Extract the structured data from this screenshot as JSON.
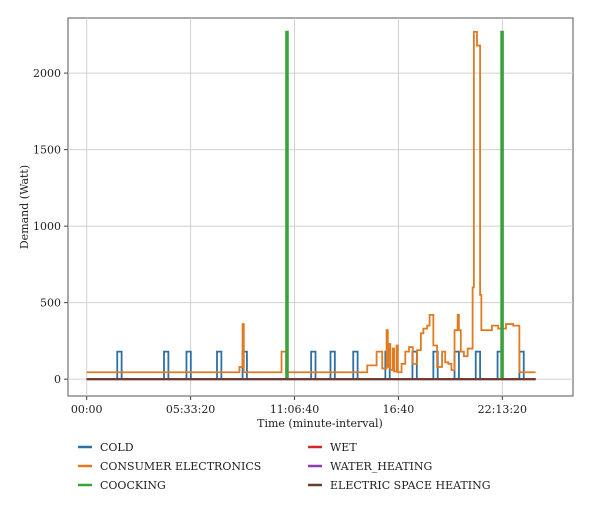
{
  "chart_data": {
    "type": "line",
    "xlabel": "Time (minute-interval)",
    "ylabel": "Demand (Watt)",
    "x_unit": "minutes since 00:00",
    "xlim": [
      -60,
      1560
    ],
    "ylim": [
      -110,
      2360
    ],
    "x_ticks": [
      {
        "value": 0,
        "label": "00:00"
      },
      {
        "value": 333.33,
        "label": "05:33:20"
      },
      {
        "value": 666.67,
        "label": "11:06:40"
      },
      {
        "value": 1000,
        "label": "16:40"
      },
      {
        "value": 1333.33,
        "label": "22:13:20"
      }
    ],
    "y_ticks": [
      0,
      500,
      1000,
      1500,
      2000
    ],
    "grid": true,
    "legend_position": "bottom",
    "series": [
      {
        "name": "COLD",
        "color": "#2d6fa7",
        "points": [
          [
            0,
            0
          ],
          [
            98,
            0
          ],
          [
            98,
            180
          ],
          [
            112,
            180
          ],
          [
            112,
            0
          ],
          [
            248,
            0
          ],
          [
            248,
            180
          ],
          [
            262,
            180
          ],
          [
            262,
            0
          ],
          [
            320,
            0
          ],
          [
            320,
            180
          ],
          [
            334,
            180
          ],
          [
            334,
            0
          ],
          [
            418,
            0
          ],
          [
            418,
            180
          ],
          [
            432,
            180
          ],
          [
            432,
            0
          ],
          [
            500,
            0
          ],
          [
            500,
            180
          ],
          [
            514,
            180
          ],
          [
            514,
            0
          ],
          [
            720,
            0
          ],
          [
            720,
            180
          ],
          [
            734,
            180
          ],
          [
            734,
            0
          ],
          [
            782,
            0
          ],
          [
            782,
            180
          ],
          [
            796,
            180
          ],
          [
            796,
            0
          ],
          [
            855,
            0
          ],
          [
            855,
            180
          ],
          [
            869,
            180
          ],
          [
            869,
            0
          ],
          [
            958,
            0
          ],
          [
            958,
            180
          ],
          [
            972,
            180
          ],
          [
            972,
            0
          ],
          [
            1045,
            0
          ],
          [
            1045,
            180
          ],
          [
            1059,
            180
          ],
          [
            1059,
            0
          ],
          [
            1112,
            0
          ],
          [
            1112,
            180
          ],
          [
            1126,
            180
          ],
          [
            1126,
            0
          ],
          [
            1180,
            0
          ],
          [
            1180,
            180
          ],
          [
            1194,
            180
          ],
          [
            1194,
            0
          ],
          [
            1248,
            0
          ],
          [
            1248,
            180
          ],
          [
            1262,
            180
          ],
          [
            1262,
            0
          ],
          [
            1318,
            0
          ],
          [
            1318,
            180
          ],
          [
            1332,
            180
          ],
          [
            1332,
            0
          ],
          [
            1388,
            0
          ],
          [
            1388,
            180
          ],
          [
            1402,
            180
          ],
          [
            1402,
            0
          ],
          [
            1440,
            0
          ]
        ]
      },
      {
        "name": "CONSUMER ELECTRONICS",
        "color": "#e07b22",
        "points": [
          [
            0,
            45
          ],
          [
            490,
            45
          ],
          [
            490,
            80
          ],
          [
            500,
            80
          ],
          [
            500,
            360
          ],
          [
            504,
            360
          ],
          [
            504,
            45
          ],
          [
            625,
            45
          ],
          [
            625,
            180
          ],
          [
            640,
            180
          ],
          [
            640,
            45
          ],
          [
            900,
            45
          ],
          [
            900,
            90
          ],
          [
            930,
            90
          ],
          [
            930,
            180
          ],
          [
            948,
            180
          ],
          [
            948,
            70
          ],
          [
            962,
            70
          ],
          [
            962,
            320
          ],
          [
            966,
            320
          ],
          [
            966,
            80
          ],
          [
            970,
            80
          ],
          [
            970,
            230
          ],
          [
            974,
            230
          ],
          [
            974,
            60
          ],
          [
            982,
            60
          ],
          [
            982,
            200
          ],
          [
            986,
            200
          ],
          [
            986,
            50
          ],
          [
            994,
            50
          ],
          [
            994,
            220
          ],
          [
            998,
            220
          ],
          [
            998,
            45
          ],
          [
            1010,
            45
          ],
          [
            1010,
            100
          ],
          [
            1022,
            100
          ],
          [
            1022,
            180
          ],
          [
            1034,
            180
          ],
          [
            1034,
            210
          ],
          [
            1046,
            210
          ],
          [
            1046,
            100
          ],
          [
            1060,
            100
          ],
          [
            1060,
            190
          ],
          [
            1072,
            190
          ],
          [
            1072,
            300
          ],
          [
            1080,
            300
          ],
          [
            1080,
            330
          ],
          [
            1092,
            330
          ],
          [
            1092,
            350
          ],
          [
            1100,
            350
          ],
          [
            1100,
            420
          ],
          [
            1112,
            420
          ],
          [
            1112,
            220
          ],
          [
            1124,
            220
          ],
          [
            1124,
            80
          ],
          [
            1140,
            80
          ],
          [
            1140,
            180
          ],
          [
            1150,
            180
          ],
          [
            1150,
            110
          ],
          [
            1160,
            110
          ],
          [
            1160,
            100
          ],
          [
            1170,
            100
          ],
          [
            1170,
            60
          ],
          [
            1180,
            60
          ],
          [
            1180,
            320
          ],
          [
            1190,
            320
          ],
          [
            1190,
            420
          ],
          [
            1194,
            420
          ],
          [
            1194,
            320
          ],
          [
            1200,
            320
          ],
          [
            1200,
            180
          ],
          [
            1210,
            180
          ],
          [
            1210,
            150
          ],
          [
            1222,
            150
          ],
          [
            1222,
            200
          ],
          [
            1238,
            200
          ],
          [
            1238,
            600
          ],
          [
            1242,
            600
          ],
          [
            1242,
            2270
          ],
          [
            1252,
            2270
          ],
          [
            1252,
            2180
          ],
          [
            1262,
            2180
          ],
          [
            1262,
            550
          ],
          [
            1266,
            550
          ],
          [
            1266,
            320
          ],
          [
            1300,
            320
          ],
          [
            1300,
            350
          ],
          [
            1320,
            350
          ],
          [
            1320,
            330
          ],
          [
            1345,
            330
          ],
          [
            1345,
            360
          ],
          [
            1368,
            360
          ],
          [
            1368,
            350
          ],
          [
            1388,
            350
          ],
          [
            1388,
            45
          ],
          [
            1440,
            45
          ]
        ]
      },
      {
        "name": "COOCKING",
        "color": "#3aa23a",
        "points": [
          [
            0,
            0
          ],
          [
            640,
            0
          ],
          [
            640,
            2270
          ],
          [
            645,
            2270
          ],
          [
            645,
            0
          ],
          [
            1330,
            0
          ],
          [
            1330,
            2270
          ],
          [
            1335,
            2270
          ],
          [
            1335,
            0
          ],
          [
            1440,
            0
          ]
        ]
      },
      {
        "name": "WET",
        "color": "#d62728",
        "points": [
          [
            0,
            0
          ],
          [
            1440,
            0
          ]
        ]
      },
      {
        "name": "WATER_HEATING",
        "color": "#8a3fb8",
        "points": [
          [
            0,
            0
          ],
          [
            1440,
            0
          ]
        ]
      },
      {
        "name": "ELECTRIC SPACE HEATING",
        "color": "#6b3b2a",
        "points": [
          [
            0,
            0
          ],
          [
            1440,
            0
          ]
        ]
      }
    ]
  }
}
